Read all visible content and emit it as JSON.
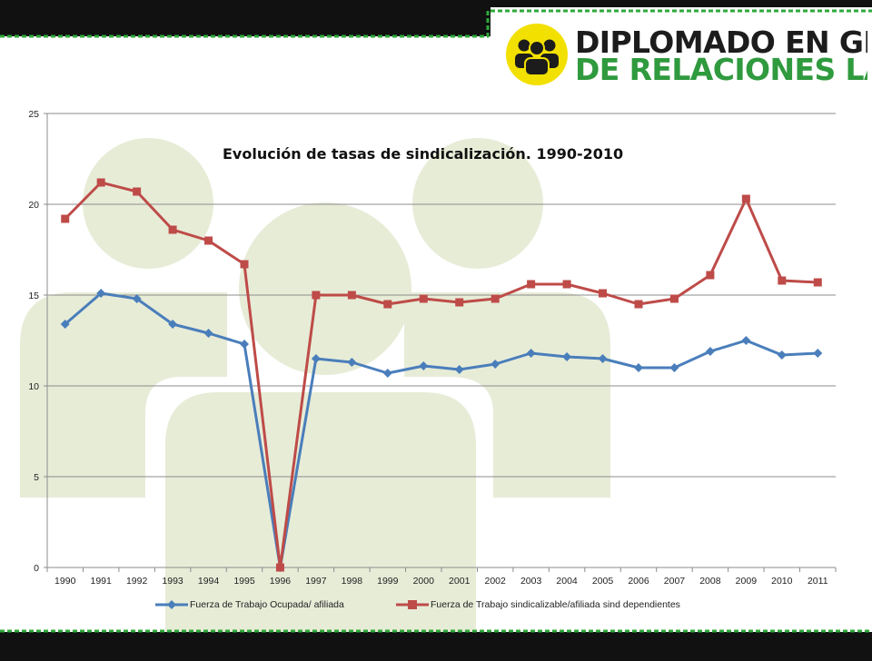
{
  "brand": {
    "line1": "DIPLOMADO EN GESTIÓN",
    "line2": "DE RELACIONES LABORALES",
    "colors": {
      "dark": "#1c1c1c",
      "green": "#2f9a3e",
      "yellow": "#f2e000",
      "dash": "#2faa3c"
    },
    "logo_icon": "people-group-icon"
  },
  "chart_data": {
    "type": "line",
    "title": "Evolución  de  tasas  de  sindicalización.  1990-2010",
    "xlabel": "",
    "ylabel": "",
    "categories": [
      "1990",
      "1991",
      "1992",
      "1993",
      "1994",
      "1995",
      "1996",
      "1997",
      "1998",
      "1999",
      "2000",
      "2001",
      "2002",
      "2003",
      "2004",
      "2005",
      "2006",
      "2007",
      "2008",
      "2009",
      "2010",
      "2011"
    ],
    "ylim": [
      0,
      25
    ],
    "yticks": [
      0,
      5,
      10,
      15,
      20,
      25
    ],
    "grid": true,
    "legend_position": "bottom",
    "series": [
      {
        "name": "Fuerza de Trabajo Ocupada/ afiliada",
        "color": "#4a7ebb",
        "marker": "diamond",
        "values": [
          13.4,
          15.1,
          14.8,
          13.4,
          12.9,
          12.3,
          0,
          11.5,
          11.3,
          10.7,
          11.1,
          10.9,
          11.2,
          11.8,
          11.6,
          11.5,
          11.0,
          11.0,
          11.9,
          12.5,
          11.7,
          11.8
        ]
      },
      {
        "name": "Fuerza de Trabajo sindicalizable/afiliada sind dependientes",
        "color": "#be4b48",
        "marker": "square",
        "values": [
          19.2,
          21.2,
          20.7,
          18.6,
          18.0,
          16.7,
          0,
          15.0,
          15.0,
          14.5,
          14.8,
          14.6,
          14.8,
          15.6,
          15.6,
          15.1,
          14.5,
          14.8,
          16.1,
          20.3,
          15.8,
          15.7
        ]
      }
    ]
  }
}
